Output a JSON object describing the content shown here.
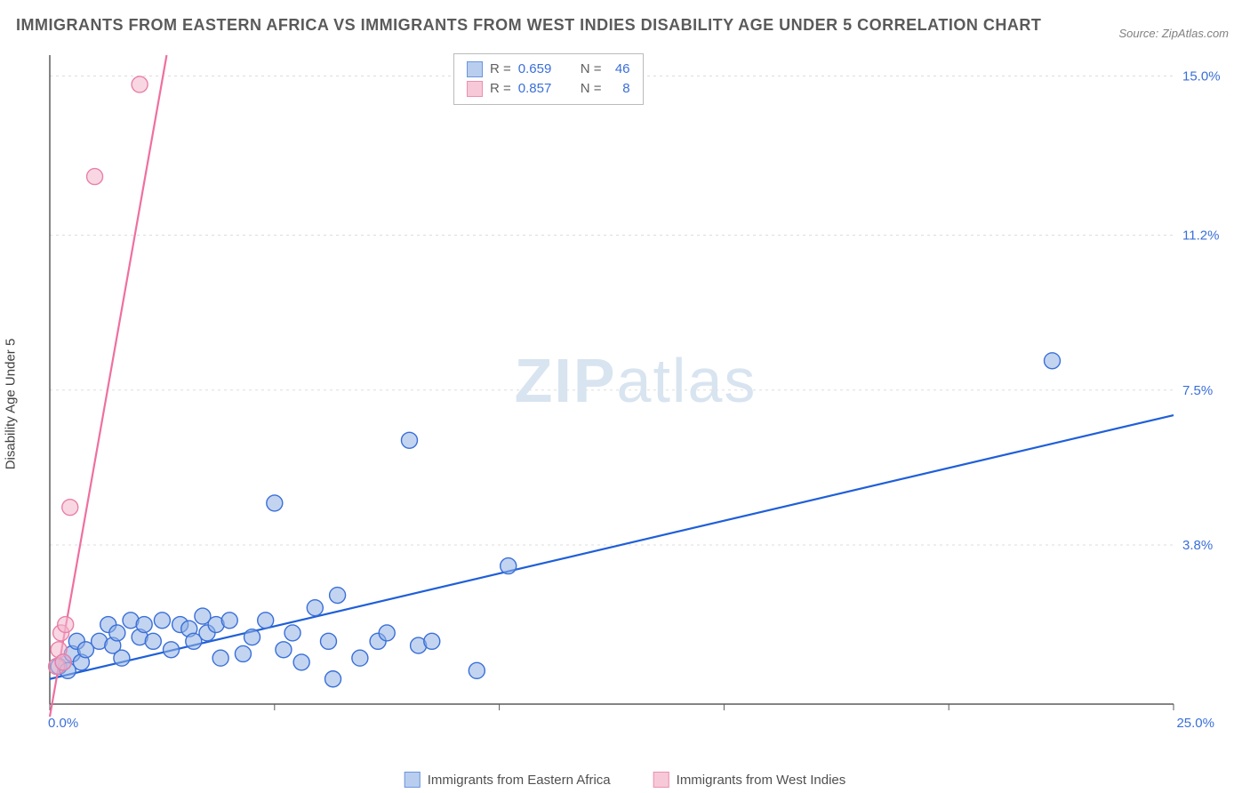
{
  "title": "IMMIGRANTS FROM EASTERN AFRICA VS IMMIGRANTS FROM WEST INDIES DISABILITY AGE UNDER 5 CORRELATION CHART",
  "source": "Source: ZipAtlas.com",
  "watermark_zip": "ZIP",
  "watermark_atlas": "atlas",
  "y_axis_label": "Disability Age Under 5",
  "correlation_legend": {
    "series": [
      {
        "swatch_fill": "#b9ceef",
        "swatch_stroke": "#6a95dd",
        "r_label": "R =",
        "r": "0.659",
        "n_label": "N =",
        "n": "46"
      },
      {
        "swatch_fill": "#f7c9d8",
        "swatch_stroke": "#ec8fb1",
        "r_label": "R =",
        "r": "0.857",
        "n_label": "N =",
        "n": "8"
      }
    ]
  },
  "bottom_legend": [
    {
      "swatch_fill": "#b9ceef",
      "swatch_stroke": "#6a95dd",
      "label": "Immigrants from Eastern Africa"
    },
    {
      "swatch_fill": "#f7c9d8",
      "swatch_stroke": "#ec8fb1",
      "label": "Immigrants from West Indies"
    }
  ],
  "chart": {
    "type": "scatter",
    "background_color": "#ffffff",
    "grid_color": "#dddddd",
    "grid_dash": "3,4",
    "axis_color": "#5b5b5b",
    "xlim": [
      0,
      25
    ],
    "ylim": [
      0,
      15.5
    ],
    "x_ticks": [
      0,
      5,
      10,
      15,
      20,
      25
    ],
    "y_ticks": [
      0,
      3.8,
      7.5,
      11.2,
      15.0
    ],
    "y_tick_labels": [
      "0.0%",
      "3.8%",
      "7.5%",
      "11.2%",
      "15.0%"
    ],
    "x_tick_labels_shown": {
      "0": "0.0%",
      "25": "25.0%"
    },
    "marker_radius": 9,
    "marker_stroke_width": 1.4,
    "marker_fill_opacity": 0.55,
    "trend_line_width": 2.2,
    "series": [
      {
        "name": "eastern_africa",
        "marker_fill": "#8fb0e4",
        "marker_stroke": "#3a6fd8",
        "trend_color": "#1f5fd8",
        "trend": {
          "x1": 0,
          "y1": 0.6,
          "x2": 25,
          "y2": 6.9
        },
        "points": [
          [
            0.2,
            0.9
          ],
          [
            0.3,
            1.0
          ],
          [
            0.4,
            0.8
          ],
          [
            0.5,
            1.2
          ],
          [
            0.6,
            1.5
          ],
          [
            0.7,
            1.0
          ],
          [
            0.8,
            1.3
          ],
          [
            1.1,
            1.5
          ],
          [
            1.3,
            1.9
          ],
          [
            1.4,
            1.4
          ],
          [
            1.5,
            1.7
          ],
          [
            1.6,
            1.1
          ],
          [
            1.8,
            2.0
          ],
          [
            2.0,
            1.6
          ],
          [
            2.1,
            1.9
          ],
          [
            2.3,
            1.5
          ],
          [
            2.5,
            2.0
          ],
          [
            2.7,
            1.3
          ],
          [
            2.9,
            1.9
          ],
          [
            3.1,
            1.8
          ],
          [
            3.2,
            1.5
          ],
          [
            3.4,
            2.1
          ],
          [
            3.5,
            1.7
          ],
          [
            3.7,
            1.9
          ],
          [
            3.8,
            1.1
          ],
          [
            4.0,
            2.0
          ],
          [
            4.3,
            1.2
          ],
          [
            4.5,
            1.6
          ],
          [
            4.8,
            2.0
          ],
          [
            5.0,
            4.8
          ],
          [
            5.2,
            1.3
          ],
          [
            5.4,
            1.7
          ],
          [
            5.6,
            1.0
          ],
          [
            5.9,
            2.3
          ],
          [
            6.2,
            1.5
          ],
          [
            6.3,
            0.6
          ],
          [
            6.4,
            2.6
          ],
          [
            6.9,
            1.1
          ],
          [
            7.3,
            1.5
          ],
          [
            7.5,
            1.7
          ],
          [
            8.0,
            6.3
          ],
          [
            8.2,
            1.4
          ],
          [
            8.5,
            1.5
          ],
          [
            9.5,
            0.8
          ],
          [
            10.2,
            3.3
          ],
          [
            22.3,
            8.2
          ]
        ]
      },
      {
        "name": "west_indies",
        "marker_fill": "#f3b7cc",
        "marker_stroke": "#ea7fa8",
        "trend_color": "#ef6fa0",
        "trend": {
          "x1": 0,
          "y1": -0.3,
          "x2": 2.6,
          "y2": 15.5
        },
        "points": [
          [
            0.15,
            0.9
          ],
          [
            0.2,
            1.3
          ],
          [
            0.25,
            1.7
          ],
          [
            0.3,
            1.0
          ],
          [
            0.35,
            1.9
          ],
          [
            0.45,
            4.7
          ],
          [
            1.0,
            12.6
          ],
          [
            2.0,
            14.8
          ]
        ]
      }
    ]
  }
}
